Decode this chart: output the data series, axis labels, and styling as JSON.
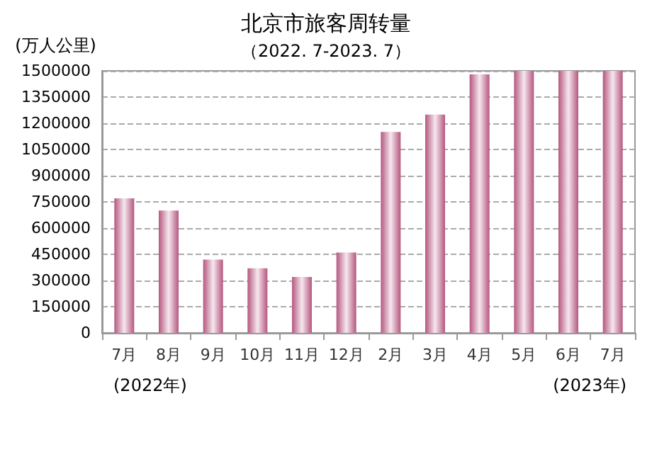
{
  "chart_data": {
    "type": "bar",
    "title": "北京市旅客周转量",
    "subtitle": "（2022. 7-2023. 7）",
    "ylabel": "(万人公里)",
    "categories": [
      "7月",
      "8月",
      "9月",
      "10月",
      "11月",
      "12月",
      "2月",
      "3月",
      "4月",
      "5月",
      "6月",
      "7月"
    ],
    "values": [
      770000,
      700000,
      420000,
      370000,
      320000,
      460000,
      1150000,
      1250000,
      1480000,
      1500000,
      1500000,
      1500000
    ],
    "color": "#b5577f",
    "ylim": [
      0,
      1500000
    ],
    "yticks": [
      0,
      150000,
      300000,
      450000,
      600000,
      750000,
      900000,
      1050000,
      1200000,
      1350000,
      1500000
    ],
    "grid": "y",
    "annotations": [
      "(2022年)",
      "(2023年)"
    ]
  }
}
